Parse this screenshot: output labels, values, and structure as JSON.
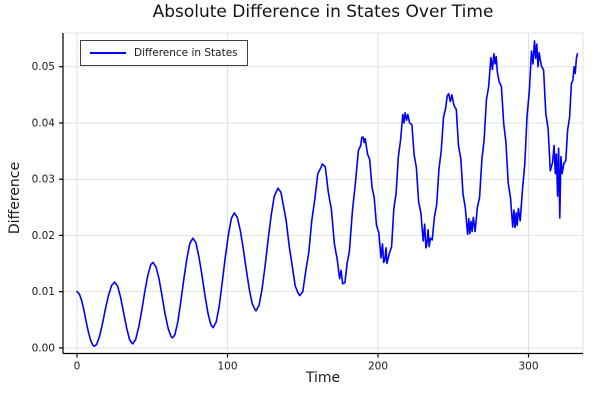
{
  "title": "Absolute Difference in States Over Time",
  "colors": {
    "line": "#0000ff",
    "grid": "#e2e2e2",
    "frame": "#e2e2e2",
    "spine": "#000000",
    "tick_text": "#1a1a1a",
    "title_text": "#141414",
    "legend_border": "#404040",
    "background": "#ffffff"
  },
  "chart_data": {
    "type": "line",
    "title": "Absolute Difference in States Over Time",
    "xlabel": "Time",
    "ylabel": "Difference",
    "xlim": [
      -9.3,
      336.2
    ],
    "ylim": [
      -0.001,
      0.056
    ],
    "xticks": [
      0,
      100,
      200,
      300
    ],
    "xtick_labels": [
      "0",
      "100",
      "200",
      "300"
    ],
    "yticks": [
      0,
      0.01,
      0.02,
      0.03,
      0.04,
      0.05
    ],
    "ytick_labels": [
      "0.00",
      "0.01",
      "0.02",
      "0.03",
      "0.04",
      "0.05"
    ],
    "grid": true,
    "legend": {
      "position": "top-left",
      "entries": [
        "Difference in States"
      ]
    },
    "series": [
      {
        "name": "Difference in States",
        "color": "#0000ff",
        "points": [
          [
            0,
            0.01
          ],
          [
            1.5,
            0.0096
          ],
          [
            3,
            0.0085
          ],
          [
            4.5,
            0.0068
          ],
          [
            6,
            0.0048
          ],
          [
            7.5,
            0.0029
          ],
          [
            9,
            0.0014
          ],
          [
            10.5,
            0.0005
          ],
          [
            11.5,
            0.0003
          ],
          [
            13,
            0.0006
          ],
          [
            15,
            0.0021
          ],
          [
            17,
            0.0044
          ],
          [
            19,
            0.0071
          ],
          [
            21,
            0.0094
          ],
          [
            23,
            0.0111
          ],
          [
            25,
            0.0117
          ],
          [
            27,
            0.011
          ],
          [
            29,
            0.009
          ],
          [
            31,
            0.0062
          ],
          [
            33,
            0.0035
          ],
          [
            35,
            0.0014
          ],
          [
            37,
            0.0007
          ],
          [
            39,
            0.0015
          ],
          [
            41,
            0.0037
          ],
          [
            43,
            0.0066
          ],
          [
            45,
            0.0099
          ],
          [
            47,
            0.0128
          ],
          [
            49,
            0.0148
          ],
          [
            50.5,
            0.0152
          ],
          [
            52.5,
            0.0144
          ],
          [
            54.5,
            0.0123
          ],
          [
            56.5,
            0.0093
          ],
          [
            58.5,
            0.0061
          ],
          [
            60.5,
            0.0035
          ],
          [
            62.5,
            0.002
          ],
          [
            63.5,
            0.0018
          ],
          [
            65,
            0.0023
          ],
          [
            67,
            0.0046
          ],
          [
            69,
            0.0082
          ],
          [
            71,
            0.0123
          ],
          [
            73,
            0.0159
          ],
          [
            75,
            0.0186
          ],
          [
            77,
            0.0195
          ],
          [
            79,
            0.0187
          ],
          [
            81,
            0.0162
          ],
          [
            83,
            0.013
          ],
          [
            85,
            0.0094
          ],
          [
            87,
            0.0062
          ],
          [
            89,
            0.0041
          ],
          [
            90.5,
            0.0036
          ],
          [
            92.5,
            0.0046
          ],
          [
            94.5,
            0.0074
          ],
          [
            96.5,
            0.0116
          ],
          [
            98.5,
            0.016
          ],
          [
            100.5,
            0.02
          ],
          [
            102.5,
            0.023
          ],
          [
            104.5,
            0.024
          ],
          [
            106.5,
            0.0232
          ],
          [
            108.5,
            0.0209
          ],
          [
            110.5,
            0.0176
          ],
          [
            112.5,
            0.0139
          ],
          [
            114.5,
            0.0104
          ],
          [
            116.5,
            0.0078
          ],
          [
            118.5,
            0.0067
          ],
          [
            119,
            0.0066
          ],
          [
            121,
            0.0076
          ],
          [
            123,
            0.0105
          ],
          [
            125,
            0.0146
          ],
          [
            127,
            0.0192
          ],
          [
            129,
            0.0236
          ],
          [
            131,
            0.0269
          ],
          [
            133.5,
            0.0284
          ],
          [
            135.5,
            0.0277
          ],
          [
            137,
            0.0255
          ],
          [
            139,
            0.0226
          ],
          [
            141,
            0.0181
          ],
          [
            143,
            0.0146
          ],
          [
            145,
            0.011
          ],
          [
            147,
            0.0097
          ],
          [
            148,
            0.0093
          ],
          [
            150,
            0.01
          ],
          [
            152,
            0.0137
          ],
          [
            154,
            0.017
          ],
          [
            156,
            0.0227
          ],
          [
            158,
            0.0264
          ],
          [
            160,
            0.031
          ],
          [
            162,
            0.032
          ],
          [
            163,
            0.0327
          ],
          [
            165,
            0.0322
          ],
          [
            167,
            0.0277
          ],
          [
            169,
            0.0246
          ],
          [
            171,
            0.0185
          ],
          [
            173,
            0.0155
          ],
          [
            174.5,
            0.0123
          ],
          [
            175.5,
            0.0138
          ],
          [
            176.5,
            0.0114
          ],
          [
            178,
            0.0116
          ],
          [
            179.5,
            0.0151
          ],
          [
            181,
            0.0172
          ],
          [
            183,
            0.0243
          ],
          [
            185,
            0.0293
          ],
          [
            187,
            0.0351
          ],
          [
            188.5,
            0.036
          ],
          [
            189.2,
            0.0374
          ],
          [
            190,
            0.0375
          ],
          [
            190.8,
            0.0365
          ],
          [
            191.5,
            0.0372
          ],
          [
            193,
            0.0345
          ],
          [
            194.5,
            0.0335
          ],
          [
            196,
            0.0286
          ],
          [
            197.5,
            0.0267
          ],
          [
            199,
            0.0218
          ],
          [
            200.5,
            0.0205
          ],
          [
            202,
            0.016
          ],
          [
            203,
            0.0185
          ],
          [
            203.8,
            0.0152
          ],
          [
            204.5,
            0.0155
          ],
          [
            205.3,
            0.0178
          ],
          [
            206,
            0.015
          ],
          [
            207.5,
            0.0168
          ],
          [
            209,
            0.018
          ],
          [
            210.5,
            0.0247
          ],
          [
            212,
            0.0275
          ],
          [
            213.5,
            0.0339
          ],
          [
            215,
            0.037
          ],
          [
            216.5,
            0.0415
          ],
          [
            217.3,
            0.04
          ],
          [
            218,
            0.0418
          ],
          [
            219,
            0.0405
          ],
          [
            219.8,
            0.0415
          ],
          [
            221,
            0.04
          ],
          [
            222.5,
            0.0397
          ],
          [
            224,
            0.0344
          ],
          [
            225.5,
            0.032
          ],
          [
            227,
            0.026
          ],
          [
            228.5,
            0.024
          ],
          [
            230,
            0.019
          ],
          [
            231,
            0.022
          ],
          [
            231.8,
            0.0178
          ],
          [
            232.5,
            0.0185
          ],
          [
            233.3,
            0.021
          ],
          [
            234,
            0.018
          ],
          [
            234.8,
            0.0195
          ],
          [
            236,
            0.0192
          ],
          [
            237.5,
            0.0234
          ],
          [
            239,
            0.0255
          ],
          [
            240.5,
            0.0319
          ],
          [
            242,
            0.035
          ],
          [
            243.5,
            0.041
          ],
          [
            245,
            0.0427
          ],
          [
            246,
            0.0448
          ],
          [
            247,
            0.0452
          ],
          [
            248,
            0.0438
          ],
          [
            249,
            0.045
          ],
          [
            250.5,
            0.0431
          ],
          [
            252,
            0.0424
          ],
          [
            253.5,
            0.0359
          ],
          [
            255,
            0.0337
          ],
          [
            256.5,
            0.0274
          ],
          [
            258,
            0.0249
          ],
          [
            259.5,
            0.0202
          ],
          [
            260.3,
            0.023
          ],
          [
            261,
            0.0203
          ],
          [
            261.8,
            0.0225
          ],
          [
            262.5,
            0.0207
          ],
          [
            263.3,
            0.0232
          ],
          [
            264.5,
            0.0207
          ],
          [
            266,
            0.0249
          ],
          [
            267.5,
            0.0268
          ],
          [
            269,
            0.0336
          ],
          [
            270.5,
            0.0369
          ],
          [
            272,
            0.0441
          ],
          [
            273.5,
            0.0464
          ],
          [
            275,
            0.0516
          ],
          [
            276,
            0.0495
          ],
          [
            277,
            0.0523
          ],
          [
            277.8,
            0.0505
          ],
          [
            278.5,
            0.0518
          ],
          [
            279.3,
            0.049
          ],
          [
            280.5,
            0.0473
          ],
          [
            282,
            0.0465
          ],
          [
            283.5,
            0.0399
          ],
          [
            285,
            0.0366
          ],
          [
            286.5,
            0.0293
          ],
          [
            288,
            0.0267
          ],
          [
            289.5,
            0.0215
          ],
          [
            290.3,
            0.0245
          ],
          [
            291,
            0.0214
          ],
          [
            291.8,
            0.024
          ],
          [
            292.5,
            0.0218
          ],
          [
            293.3,
            0.0248
          ],
          [
            294.5,
            0.0226
          ],
          [
            296,
            0.0282
          ],
          [
            297.5,
            0.0327
          ],
          [
            299,
            0.0411
          ],
          [
            300.5,
            0.0456
          ],
          [
            302,
            0.0528
          ],
          [
            303,
            0.0505
          ],
          [
            304,
            0.0546
          ],
          [
            304.8,
            0.0515
          ],
          [
            305.5,
            0.054
          ],
          [
            306.3,
            0.05
          ],
          [
            307,
            0.0525
          ],
          [
            308.5,
            0.0502
          ],
          [
            310,
            0.0494
          ],
          [
            311.5,
            0.0417
          ],
          [
            313,
            0.039
          ],
          [
            314.5,
            0.0315
          ],
          [
            316,
            0.033
          ],
          [
            317,
            0.036
          ],
          [
            317.8,
            0.031
          ],
          [
            318.5,
            0.0345
          ],
          [
            319.3,
            0.027
          ],
          [
            320,
            0.0355
          ],
          [
            320.8,
            0.0231
          ],
          [
            321.5,
            0.034
          ],
          [
            322.3,
            0.031
          ],
          [
            323.5,
            0.0328
          ],
          [
            324.8,
            0.0333
          ],
          [
            326,
            0.0387
          ],
          [
            327.3,
            0.041
          ],
          [
            328.5,
            0.047
          ],
          [
            329.5,
            0.0476
          ],
          [
            330.3,
            0.05
          ],
          [
            331,
            0.0488
          ],
          [
            331.8,
            0.0515
          ],
          [
            332.5,
            0.0523
          ]
        ]
      }
    ]
  }
}
